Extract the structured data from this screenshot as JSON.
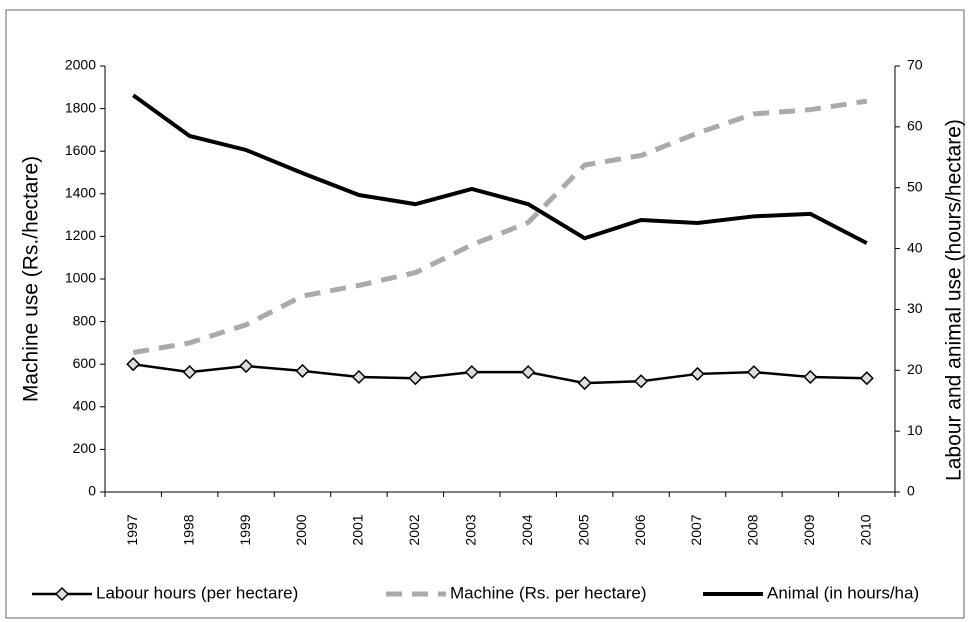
{
  "chart_data": {
    "type": "line",
    "ylabel": "Machine use (Rs./hectare)",
    "y2label": "Labour and animal use (hours/hectare)",
    "categories": [
      "1997",
      "1998",
      "1999",
      "2000",
      "2001",
      "2002",
      "2003",
      "2004",
      "2005",
      "2006",
      "2007",
      "2008",
      "2009",
      "2010"
    ],
    "ylim": [
      0,
      2000
    ],
    "yticks": [
      0,
      200,
      400,
      600,
      800,
      1000,
      1200,
      1400,
      1600,
      1800,
      2000
    ],
    "y2lim": [
      0,
      70
    ],
    "y2ticks": [
      0,
      10,
      20,
      30,
      40,
      50,
      60,
      70
    ],
    "legend": "bottom",
    "series": [
      {
        "name": "Labour hours (per hectare)",
        "color": "#000000",
        "axis": "y2",
        "marker": "diamond",
        "values": [
          21.0,
          19.7,
          20.7,
          19.9,
          18.9,
          18.7,
          19.7,
          19.7,
          17.9,
          18.2,
          19.4,
          19.7,
          18.9,
          18.7
        ]
      },
      {
        "name": "Machine (Rs. per hectare)",
        "color": "#aaaaaa",
        "dash": true,
        "values": [
          655,
          700,
          785,
          920,
          970,
          1030,
          1160,
          1265,
          1535,
          1580,
          1685,
          1775,
          1795,
          1835
        ]
      },
      {
        "name": "Animal (in hours/ha)",
        "color": "#000000",
        "axis": "y2",
        "values": [
          65.2,
          58.5,
          56.2,
          52.4,
          48.8,
          47.3,
          49.8,
          47.3,
          41.7,
          44.7,
          44.2,
          45.3,
          45.7,
          40.9
        ]
      }
    ]
  }
}
